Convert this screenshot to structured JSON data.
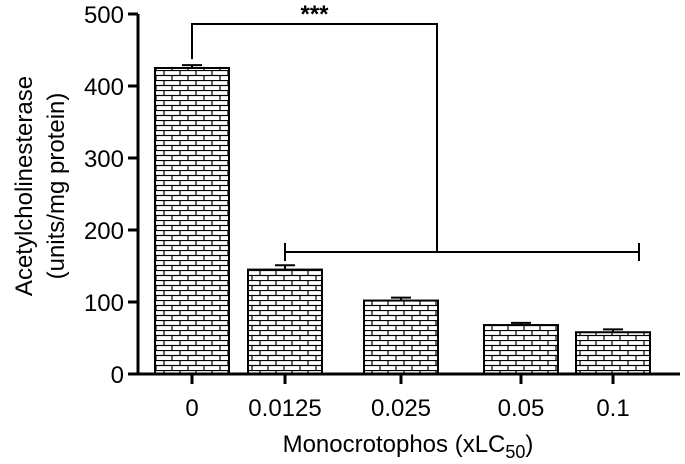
{
  "chart_data": {
    "type": "bar",
    "categories": [
      "0",
      "0.0125",
      "0.025",
      "0.05",
      "0.1"
    ],
    "values": [
      425,
      145,
      102,
      68,
      58
    ],
    "errors": [
      4,
      6,
      4,
      3,
      4
    ],
    "ylim": [
      0,
      500
    ],
    "yticks": [
      0,
      100,
      200,
      300,
      400,
      500
    ],
    "ylabel_line1": "Acetylcholinesterase",
    "ylabel_line2": "(units/mg protein)",
    "xlabel_main": "Monocrotophos (xLC",
    "xlabel_sub": "50",
    "xlabel_end": ")",
    "significance": "***",
    "grid": false,
    "bar_pattern": "brick",
    "bar_fill_color": "#ffffff",
    "bar_line_color": "#000000"
  }
}
